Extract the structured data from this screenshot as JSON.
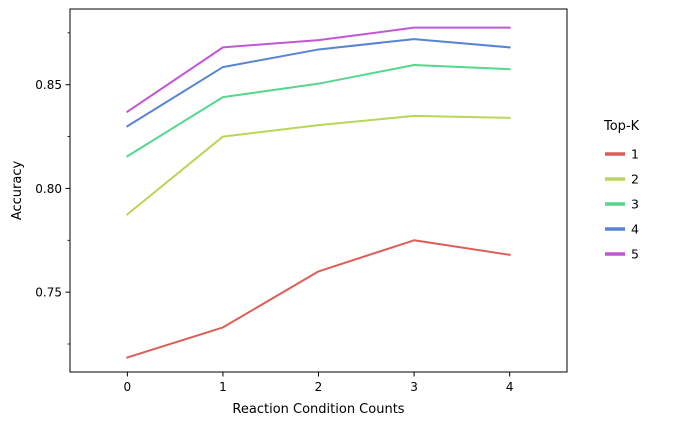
{
  "chart_data": {
    "type": "line",
    "xlabel": "Reaction Condition Counts",
    "ylabel": "Accuracy",
    "x": [
      0,
      1,
      2,
      3,
      4
    ],
    "xlim": [
      -0.6,
      4.6
    ],
    "ylim": [
      0.7115,
      0.8865
    ],
    "x_ticks": [
      "0",
      "1",
      "2",
      "3",
      "4"
    ],
    "y_ticks": [
      0.75,
      0.8,
      0.85
    ],
    "y_tick_labels": [
      "0.75",
      "0.80",
      "0.85"
    ],
    "y_minor_ticks": [
      0.725,
      0.775,
      0.825,
      0.875
    ],
    "grid": false,
    "legend": {
      "title": "Top-K",
      "placement": "right-outside"
    },
    "series": [
      {
        "name": "1",
        "color": "#db5f57",
        "values": [
          0.7185,
          0.733,
          0.76,
          0.775,
          0.768
        ]
      },
      {
        "name": "2",
        "color": "#b9d657",
        "values": [
          0.7875,
          0.825,
          0.8305,
          0.835,
          0.834
        ]
      },
      {
        "name": "3",
        "color": "#57d68d",
        "values": [
          0.8155,
          0.844,
          0.8505,
          0.8595,
          0.8575
        ]
      },
      {
        "name": "4",
        "color": "#5784d6",
        "values": [
          0.83,
          0.8585,
          0.867,
          0.872,
          0.868
        ]
      },
      {
        "name": "5",
        "color": "#c157d6",
        "values": [
          0.837,
          0.868,
          0.8715,
          0.8775,
          0.8775
        ]
      }
    ]
  }
}
